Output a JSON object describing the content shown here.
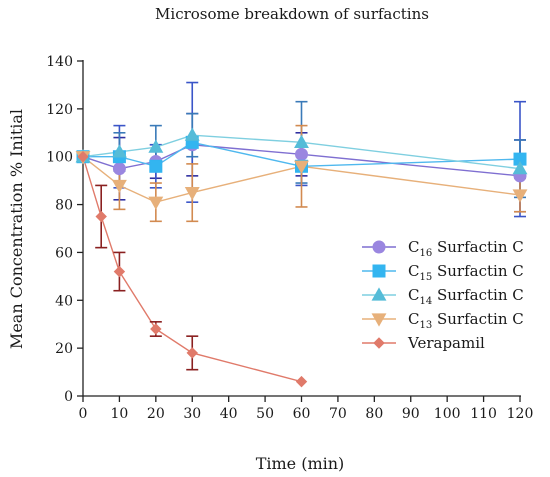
{
  "chart_data": {
    "type": "line",
    "title": "Microsome breakdown of surfactins",
    "xlabel": "Time (min)",
    "ylabel": "Mean Concentration % Initial",
    "xlim": [
      0,
      120
    ],
    "ylim": [
      0,
      140
    ],
    "xticks": [
      "0",
      "10",
      "20",
      "30",
      "40",
      "50",
      "60",
      "70",
      "80",
      "90",
      "100",
      "110",
      "120"
    ],
    "yticks": [
      "0",
      "20",
      "40",
      "60",
      "80",
      "100",
      "120",
      "140"
    ],
    "legend_position": "right",
    "series": [
      {
        "name": "C16 Surfactin C",
        "label_prefix": "C",
        "label_sub": "16",
        "label_suffix": " Surfactin C",
        "color": "#9a86e0",
        "line_color": "#7f6fd1",
        "err_color": "#2f2fa0",
        "marker": "circle",
        "x": [
          0,
          10,
          20,
          30,
          60,
          120
        ],
        "y": [
          100,
          95,
          98,
          105,
          101,
          92
        ],
        "err": [
          0,
          13,
          7,
          13,
          9,
          15
        ]
      },
      {
        "name": "C15 Surfactin C",
        "label_prefix": "C",
        "label_sub": "15",
        "label_suffix": " Surfactin C",
        "color": "#33b5f0",
        "line_color": "#4fb8ee",
        "err_color": "#3a55c8",
        "marker": "square",
        "x": [
          0,
          10,
          20,
          30,
          60,
          120
        ],
        "y": [
          100,
          100,
          96,
          106,
          96,
          99
        ],
        "err": [
          0,
          13,
          9,
          25,
          8,
          24
        ]
      },
      {
        "name": "C14 Surfactin C",
        "label_prefix": "C",
        "label_sub": "14",
        "label_suffix": " Surfactin C",
        "color": "#55bcd8",
        "line_color": "#7fcfe0",
        "err_color": "#3a7ab8",
        "marker": "triangle-up",
        "x": [
          0,
          10,
          20,
          30,
          60,
          120
        ],
        "y": [
          100,
          102,
          104,
          109,
          106,
          95
        ],
        "err": [
          0,
          8,
          9,
          9,
          17,
          12
        ]
      },
      {
        "name": "C13 Surfactin C",
        "label_prefix": "C",
        "label_sub": "13",
        "label_suffix": " Surfactin C",
        "color": "#e7b07a",
        "line_color": "#e7b07a",
        "err_color": "#d28a50",
        "marker": "triangle-down",
        "x": [
          0,
          10,
          20,
          30,
          60,
          120
        ],
        "y": [
          100,
          88,
          81,
          85,
          96,
          84
        ],
        "err": [
          0,
          10,
          8,
          12,
          17,
          7
        ]
      },
      {
        "name": "Verapamil",
        "label_prefix": "Verapamil",
        "label_sub": "",
        "label_suffix": "",
        "color": "#e07a6a",
        "line_color": "#e07a6a",
        "err_color": "#8a2020",
        "marker": "diamond",
        "x": [
          0,
          5,
          10,
          20,
          30,
          60
        ],
        "y": [
          100,
          75,
          52,
          28,
          18,
          6
        ],
        "err": [
          0,
          13,
          8,
          3,
          7,
          0
        ]
      }
    ]
  }
}
